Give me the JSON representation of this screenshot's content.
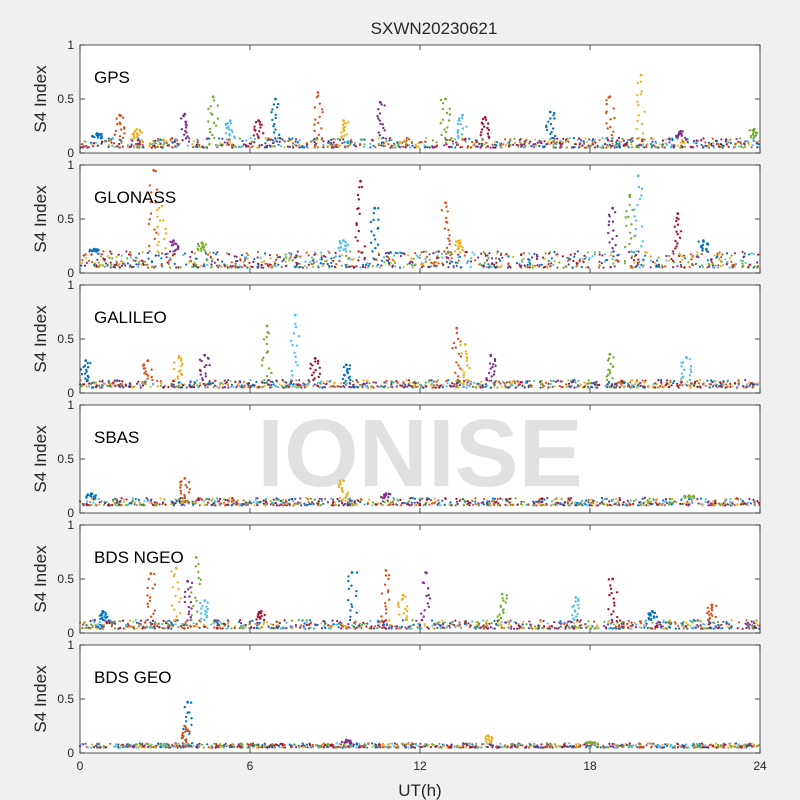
{
  "figure": {
    "title": "SXWN20230621",
    "xlabel": "UT(h)",
    "watermark": "IONISE"
  },
  "colors": [
    "#0072BD",
    "#D95319",
    "#EDB120",
    "#7E2F8E",
    "#77AC30",
    "#4DBEEE",
    "#A2142F"
  ],
  "chart_data": [
    {
      "type": "scatter",
      "panel_label": "GPS",
      "ylabel": "S4 Index",
      "xlim": [
        0,
        24
      ],
      "ylim": [
        0,
        1
      ],
      "xticks": [
        0,
        6,
        12,
        18,
        24
      ],
      "yticks": [
        0,
        0.5,
        1
      ],
      "baseline": [
        0.05,
        0.14
      ],
      "spikes": [
        {
          "x": 0.6,
          "y": 0.18
        },
        {
          "x": 1.4,
          "y": 0.35
        },
        {
          "x": 2.0,
          "y": 0.22
        },
        {
          "x": 3.7,
          "y": 0.36
        },
        {
          "x": 4.7,
          "y": 0.52
        },
        {
          "x": 5.3,
          "y": 0.3
        },
        {
          "x": 6.3,
          "y": 0.3
        },
        {
          "x": 6.9,
          "y": 0.5
        },
        {
          "x": 8.4,
          "y": 0.56
        },
        {
          "x": 9.3,
          "y": 0.3
        },
        {
          "x": 10.6,
          "y": 0.47
        },
        {
          "x": 12.9,
          "y": 0.5
        },
        {
          "x": 13.5,
          "y": 0.35
        },
        {
          "x": 14.3,
          "y": 0.33
        },
        {
          "x": 16.6,
          "y": 0.38
        },
        {
          "x": 18.7,
          "y": 0.52
        },
        {
          "x": 19.8,
          "y": 0.72
        },
        {
          "x": 21.2,
          "y": 0.2
        },
        {
          "x": 23.8,
          "y": 0.22
        }
      ]
    },
    {
      "type": "scatter",
      "panel_label": "GLONASS",
      "ylabel": "S4 Index",
      "xlim": [
        0,
        24
      ],
      "ylim": [
        0,
        1
      ],
      "xticks": [
        0,
        6,
        12,
        18,
        24
      ],
      "yticks": [
        0,
        0.5,
        1
      ],
      "baseline": [
        0.05,
        0.2
      ],
      "spikes": [
        {
          "x": 0.5,
          "y": 0.22
        },
        {
          "x": 2.6,
          "y": 0.95
        },
        {
          "x": 2.9,
          "y": 0.62
        },
        {
          "x": 3.3,
          "y": 0.3
        },
        {
          "x": 4.3,
          "y": 0.28
        },
        {
          "x": 9.3,
          "y": 0.3
        },
        {
          "x": 9.9,
          "y": 0.85
        },
        {
          "x": 10.4,
          "y": 0.6
        },
        {
          "x": 12.9,
          "y": 0.65
        },
        {
          "x": 13.4,
          "y": 0.3
        },
        {
          "x": 18.8,
          "y": 0.6
        },
        {
          "x": 19.4,
          "y": 0.72
        },
        {
          "x": 19.7,
          "y": 0.9
        },
        {
          "x": 21.1,
          "y": 0.55
        },
        {
          "x": 22.0,
          "y": 0.3
        }
      ]
    },
    {
      "type": "scatter",
      "panel_label": "GALILEO",
      "ylabel": "S4 Index",
      "xlim": [
        0,
        24
      ],
      "ylim": [
        0,
        1
      ],
      "xticks": [
        0,
        6,
        12,
        18,
        24
      ],
      "yticks": [
        0,
        0.5,
        1
      ],
      "baseline": [
        0.05,
        0.12
      ],
      "spikes": [
        {
          "x": 0.2,
          "y": 0.3
        },
        {
          "x": 2.4,
          "y": 0.3
        },
        {
          "x": 3.5,
          "y": 0.34
        },
        {
          "x": 4.4,
          "y": 0.35
        },
        {
          "x": 6.6,
          "y": 0.62
        },
        {
          "x": 7.6,
          "y": 0.72
        },
        {
          "x": 8.3,
          "y": 0.32
        },
        {
          "x": 9.4,
          "y": 0.26
        },
        {
          "x": 13.3,
          "y": 0.6
        },
        {
          "x": 13.6,
          "y": 0.45
        },
        {
          "x": 14.5,
          "y": 0.35
        },
        {
          "x": 18.7,
          "y": 0.36
        },
        {
          "x": 21.4,
          "y": 0.33
        }
      ]
    },
    {
      "type": "scatter",
      "panel_label": "SBAS",
      "ylabel": "S4 Index",
      "xlim": [
        0,
        24
      ],
      "ylim": [
        0,
        1
      ],
      "xticks": [
        0,
        6,
        12,
        18,
        24
      ],
      "yticks": [
        0,
        0.5,
        1
      ],
      "baseline": [
        0.07,
        0.14
      ],
      "spikes": [
        {
          "x": 0.4,
          "y": 0.18
        },
        {
          "x": 3.7,
          "y": 0.32
        },
        {
          "x": 9.3,
          "y": 0.3
        },
        {
          "x": 10.8,
          "y": 0.18
        },
        {
          "x": 21.5,
          "y": 0.16
        }
      ]
    },
    {
      "type": "scatter",
      "panel_label": "BDS NGEO",
      "ylabel": "S4 Index",
      "xlim": [
        0,
        24
      ],
      "ylim": [
        0,
        1
      ],
      "xticks": [
        0,
        6,
        12,
        18,
        24
      ],
      "yticks": [
        0,
        0.5,
        1
      ],
      "baseline": [
        0.04,
        0.12
      ],
      "spikes": [
        {
          "x": 0.8,
          "y": 0.2
        },
        {
          "x": 2.5,
          "y": 0.55
        },
        {
          "x": 3.4,
          "y": 0.6
        },
        {
          "x": 3.8,
          "y": 0.48
        },
        {
          "x": 4.1,
          "y": 0.7
        },
        {
          "x": 4.4,
          "y": 0.3
        },
        {
          "x": 6.4,
          "y": 0.2
        },
        {
          "x": 9.6,
          "y": 0.56
        },
        {
          "x": 10.8,
          "y": 0.58
        },
        {
          "x": 11.4,
          "y": 0.35
        },
        {
          "x": 12.2,
          "y": 0.56
        },
        {
          "x": 14.9,
          "y": 0.36
        },
        {
          "x": 17.5,
          "y": 0.33
        },
        {
          "x": 18.8,
          "y": 0.5
        },
        {
          "x": 20.2,
          "y": 0.2
        },
        {
          "x": 22.3,
          "y": 0.26
        }
      ]
    },
    {
      "type": "scatter",
      "panel_label": "BDS GEO",
      "ylabel": "S4 Index",
      "xlim": [
        0,
        24
      ],
      "ylim": [
        0,
        1
      ],
      "xticks": [
        0,
        6,
        12,
        18,
        24
      ],
      "yticks": [
        0,
        0.5,
        1
      ],
      "baseline": [
        0.05,
        0.09
      ],
      "spikes": [
        {
          "x": 3.8,
          "y": 0.47
        },
        {
          "x": 3.7,
          "y": 0.25
        },
        {
          "x": 14.4,
          "y": 0.16
        },
        {
          "x": 9.4,
          "y": 0.12
        },
        {
          "x": 18.0,
          "y": 0.1
        }
      ]
    }
  ]
}
